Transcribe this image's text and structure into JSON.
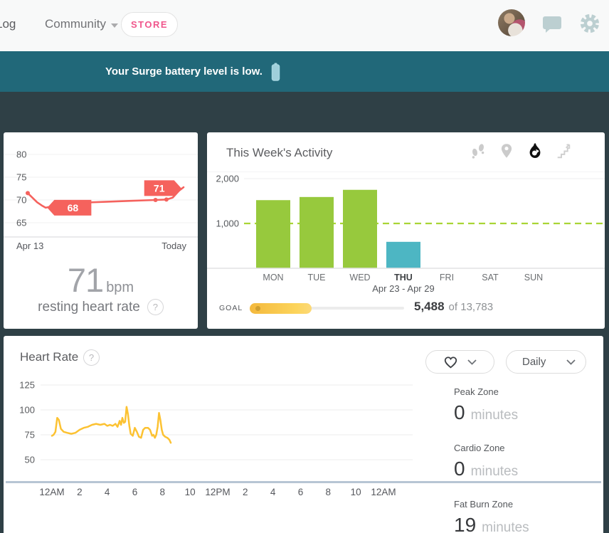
{
  "nav": {
    "log_label": "Log",
    "community_label": "Community",
    "store_label": "STORE"
  },
  "banner": {
    "message": "Your Surge battery level is low."
  },
  "resting_hr": {
    "value": "71",
    "unit": "bpm",
    "label": "resting heart rate",
    "range_start": "Apr 13",
    "range_end": "Today",
    "chart_data": {
      "type": "line",
      "title": "resting heart rate trend",
      "ylabel": "bpm",
      "y_ticks": [
        80,
        75,
        70,
        65
      ],
      "x_range": [
        "Apr 13",
        "Today"
      ],
      "line_color": "#f5625d",
      "grid": true,
      "points": [
        [
          0,
          71.5
        ],
        [
          0.03,
          70.5
        ],
        [
          0.06,
          69.5
        ],
        [
          0.09,
          68.8
        ],
        [
          0.115,
          68.3
        ],
        [
          0.14,
          68.5
        ],
        [
          0.2,
          69.1
        ],
        [
          0.35,
          69.4
        ],
        [
          0.5,
          69.6
        ],
        [
          0.65,
          69.8
        ],
        [
          0.82,
          70.0
        ],
        [
          0.89,
          70.1
        ],
        [
          0.93,
          70.5
        ],
        [
          0.97,
          72.0
        ],
        [
          1,
          72.8
        ]
      ],
      "dot_points": [
        0,
        10,
        11
      ],
      "badges": [
        {
          "label": "68",
          "anchor_f": 0.125,
          "anchor_v": 68.3,
          "dir": "left"
        },
        {
          "label": "71",
          "anchor_f": 0.985,
          "anchor_v": 72.6,
          "dir": "right"
        }
      ]
    }
  },
  "week_activity": {
    "title": "This Week's Activity",
    "icons": [
      "steps-icon",
      "location-icon",
      "calories-flame-icon",
      "floors-icon"
    ],
    "active_icon": "calories-flame-icon",
    "goal_label": "GOAL",
    "goal_current": "5,488",
    "goal_of": "of 13,783",
    "chart_data": {
      "type": "bar",
      "title": "This Week's Activity (calories)",
      "categories": [
        "MON",
        "TUE",
        "WED",
        "THU",
        "FRI",
        "SAT",
        "SUN"
      ],
      "values": [
        1520,
        1590,
        1750,
        590,
        0,
        0,
        0
      ],
      "selected_index": 3,
      "selected_sublabel": "Apr 23 - Apr 29",
      "y_ticks": [
        "2,000",
        "1,000"
      ],
      "y_tick_values": [
        2000,
        1000
      ],
      "ylim": [
        0,
        2000
      ],
      "goal_line": 1000,
      "bar_color": "#97c93d",
      "selected_color": "#4db6c3",
      "goal_line_color": "#a9d535"
    }
  },
  "heart_rate": {
    "title": "Heart Rate",
    "metric_selector": "heart",
    "period_selector": "Daily",
    "zones": [
      {
        "label": "Peak Zone",
        "value": "0",
        "unit": "minutes"
      },
      {
        "label": "Cardio Zone",
        "value": "0",
        "unit": "minutes"
      },
      {
        "label": "Fat Burn Zone",
        "value": "19",
        "unit": "minutes"
      }
    ],
    "chart_data": {
      "type": "line",
      "title": "Heart rate today",
      "ylabel": "bpm",
      "y_ticks": [
        125,
        100,
        75,
        50
      ],
      "ylim": [
        50,
        125
      ],
      "x_ticks": [
        "12AM",
        "2",
        "4",
        "6",
        "8",
        "10",
        "12PM",
        "2",
        "4",
        "6",
        "8",
        "10",
        "12AM"
      ],
      "x_range_hours": [
        0,
        24
      ],
      "line_color": "#fcc232",
      "grid": true,
      "points": [
        [
          0,
          74
        ],
        [
          0.12,
          75
        ],
        [
          0.25,
          78
        ],
        [
          0.38,
          92
        ],
        [
          0.5,
          90
        ],
        [
          0.65,
          81
        ],
        [
          0.85,
          78
        ],
        [
          1.1,
          77
        ],
        [
          1.4,
          76
        ],
        [
          1.7,
          77
        ],
        [
          2.0,
          80
        ],
        [
          2.3,
          82
        ],
        [
          2.6,
          83
        ],
        [
          2.9,
          85
        ],
        [
          3.2,
          86
        ],
        [
          3.5,
          85
        ],
        [
          3.8,
          86
        ],
        [
          4.0,
          84
        ],
        [
          4.2,
          85
        ],
        [
          4.4,
          84
        ],
        [
          4.6,
          86
        ],
        [
          4.75,
          83
        ],
        [
          4.9,
          89
        ],
        [
          5.0,
          85
        ],
        [
          5.1,
          92
        ],
        [
          5.2,
          87
        ],
        [
          5.3,
          88
        ],
        [
          5.4,
          103
        ],
        [
          5.5,
          96
        ],
        [
          5.6,
          84
        ],
        [
          5.7,
          76
        ],
        [
          5.85,
          74
        ],
        [
          6.0,
          82
        ],
        [
          6.15,
          78
        ],
        [
          6.3,
          73
        ],
        [
          6.45,
          72
        ],
        [
          6.6,
          80
        ],
        [
          6.75,
          82
        ],
        [
          6.95,
          82
        ],
        [
          7.1,
          80
        ],
        [
          7.25,
          74
        ],
        [
          7.35,
          75
        ],
        [
          7.45,
          72
        ],
        [
          7.55,
          75
        ],
        [
          7.65,
          83
        ],
        [
          7.75,
          97
        ],
        [
          7.85,
          90
        ],
        [
          7.95,
          80
        ],
        [
          8.05,
          75
        ],
        [
          8.2,
          73
        ],
        [
          8.35,
          72
        ],
        [
          8.5,
          70
        ],
        [
          8.6,
          67
        ]
      ]
    }
  }
}
